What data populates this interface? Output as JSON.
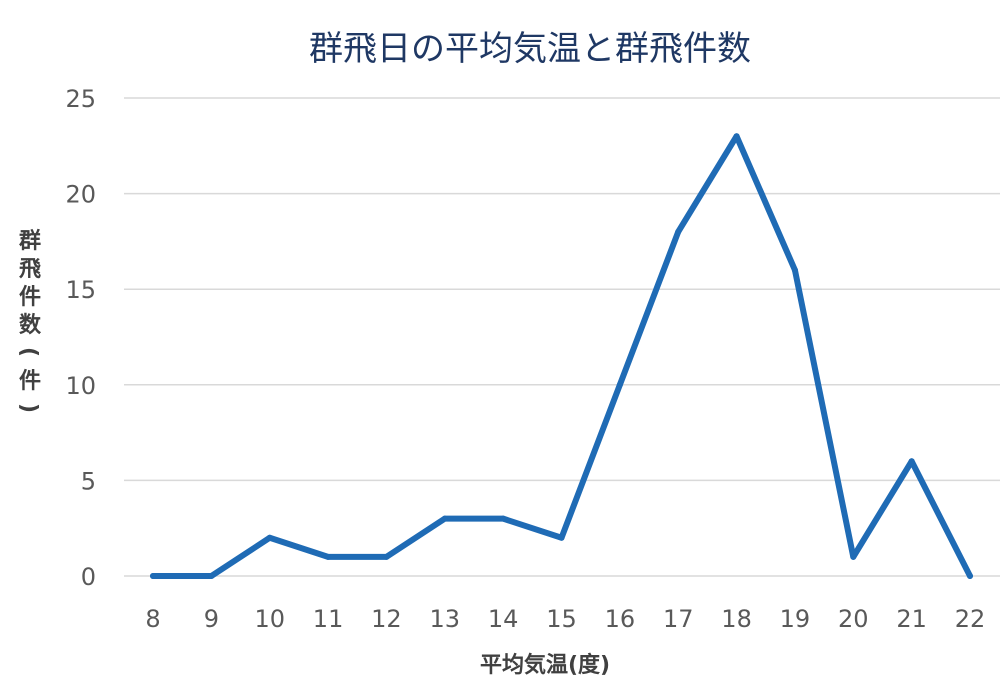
{
  "chart_data": {
    "type": "line",
    "title": "群飛日の平均気温と群飛件数",
    "xlabel": "平均気温(度)",
    "ylabel": "群飛件数(件)",
    "x": [
      8,
      9,
      10,
      11,
      12,
      13,
      14,
      15,
      16,
      17,
      18,
      19,
      20,
      21,
      22
    ],
    "series": [
      {
        "values": [
          0,
          0,
          2,
          1,
          1,
          3,
          3,
          2,
          10,
          18,
          23,
          16,
          1,
          6,
          0
        ]
      }
    ],
    "ylim": [
      0,
      25
    ],
    "yticks": [
      0,
      5,
      10,
      15,
      20,
      25
    ],
    "grid": true,
    "legend": "none",
    "colors": {
      "series": "#1f6bb5",
      "title": "#1f3864",
      "grid": "#d9d9d9"
    }
  }
}
